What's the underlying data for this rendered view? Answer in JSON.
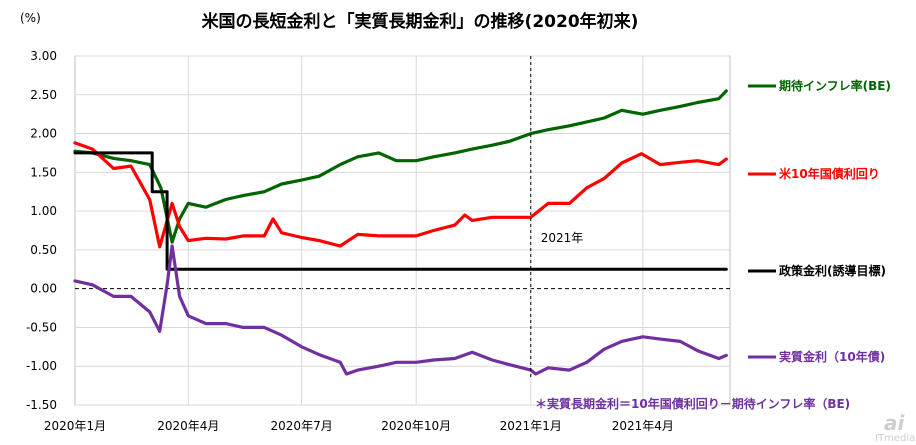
{
  "chart_data": {
    "type": "line",
    "title": "米国の長短金利と「実質長期金利」の推移(2020年初来)",
    "ylabel": "(%)",
    "ylim": [
      -1.5,
      3.0
    ],
    "yticks": [
      "3.00",
      "2.50",
      "2.00",
      "1.50",
      "1.00",
      "0.50",
      "0.00",
      "-0.50",
      "-1.00",
      "-1.50"
    ],
    "ytick_values": [
      3.0,
      2.5,
      2.0,
      1.5,
      1.0,
      0.5,
      0.0,
      -0.5,
      -1.0,
      -1.5
    ],
    "xlim": [
      "2020-01-01",
      "2021-06-10"
    ],
    "xticks": [
      {
        "label": "2020年1月",
        "date": "2020-01-01"
      },
      {
        "label": "2020年4月",
        "date": "2020-04-01"
      },
      {
        "label": "2020年7月",
        "date": "2020-07-01"
      },
      {
        "label": "2020年10月",
        "date": "2020-10-01"
      },
      {
        "label": "2021年1月",
        "date": "2021-01-01"
      },
      {
        "label": "2021年4月",
        "date": "2021-04-01"
      }
    ],
    "grid": true,
    "zero_line": "dashed",
    "annotation": {
      "text": "2021年",
      "date": "2021-01-01",
      "y": 0.6
    },
    "note": "＊実質長期金利＝10年国債利回り－期待インフレ率（BE)",
    "series": [
      {
        "name": "期待インフレ率(BE)",
        "color": "#006400",
        "x": [
          "2020-01-01",
          "2020-01-15",
          "2020-02-01",
          "2020-02-15",
          "2020-03-01",
          "2020-03-10",
          "2020-03-19",
          "2020-03-25",
          "2020-04-01",
          "2020-04-15",
          "2020-05-01",
          "2020-05-15",
          "2020-06-01",
          "2020-06-15",
          "2020-07-01",
          "2020-07-15",
          "2020-08-01",
          "2020-08-15",
          "2020-09-01",
          "2020-09-15",
          "2020-10-01",
          "2020-10-15",
          "2020-11-01",
          "2020-11-15",
          "2020-12-01",
          "2020-12-15",
          "2021-01-01",
          "2021-01-15",
          "2021-02-01",
          "2021-02-15",
          "2021-03-01",
          "2021-03-15",
          "2021-04-01",
          "2021-04-15",
          "2021-05-01",
          "2021-05-15",
          "2021-06-01",
          "2021-06-07"
        ],
        "values": [
          1.77,
          1.75,
          1.68,
          1.65,
          1.6,
          1.3,
          0.6,
          0.9,
          1.1,
          1.05,
          1.15,
          1.2,
          1.25,
          1.35,
          1.4,
          1.45,
          1.6,
          1.7,
          1.75,
          1.65,
          1.65,
          1.7,
          1.75,
          1.8,
          1.85,
          1.9,
          2.0,
          2.05,
          2.1,
          2.15,
          2.2,
          2.3,
          2.25,
          2.3,
          2.35,
          2.4,
          2.45,
          2.55
        ]
      },
      {
        "name": "米10年国債利回り",
        "color": "#ff0000",
        "x": [
          "2020-01-01",
          "2020-01-15",
          "2020-02-01",
          "2020-02-15",
          "2020-03-01",
          "2020-03-09",
          "2020-03-19",
          "2020-03-25",
          "2020-04-01",
          "2020-04-15",
          "2020-05-01",
          "2020-05-15",
          "2020-06-01",
          "2020-06-08",
          "2020-06-15",
          "2020-07-01",
          "2020-07-15",
          "2020-08-01",
          "2020-08-15",
          "2020-09-01",
          "2020-09-15",
          "2020-10-01",
          "2020-10-15",
          "2020-11-01",
          "2020-11-09",
          "2020-11-15",
          "2020-12-01",
          "2020-12-15",
          "2021-01-01",
          "2021-01-15",
          "2021-02-01",
          "2021-02-15",
          "2021-03-01",
          "2021-03-15",
          "2021-03-31",
          "2021-04-15",
          "2021-05-01",
          "2021-05-15",
          "2021-06-01",
          "2021-06-07"
        ],
        "values": [
          1.88,
          1.8,
          1.55,
          1.58,
          1.15,
          0.54,
          1.1,
          0.8,
          0.62,
          0.65,
          0.64,
          0.68,
          0.68,
          0.9,
          0.72,
          0.66,
          0.62,
          0.55,
          0.7,
          0.68,
          0.68,
          0.68,
          0.75,
          0.82,
          0.95,
          0.88,
          0.92,
          0.92,
          0.92,
          1.1,
          1.1,
          1.3,
          1.42,
          1.62,
          1.74,
          1.6,
          1.63,
          1.65,
          1.6,
          1.67
        ]
      },
      {
        "name": "政策金利(誘導目標)",
        "color": "#000000",
        "x": [
          "2020-01-01",
          "2020-03-03",
          "2020-03-03",
          "2020-03-15",
          "2020-03-15",
          "2021-06-07"
        ],
        "values": [
          1.75,
          1.75,
          1.25,
          1.25,
          0.25,
          0.25
        ]
      },
      {
        "name": "実質金利（10年債)",
        "color": "#7030a0",
        "x": [
          "2020-01-01",
          "2020-01-15",
          "2020-02-01",
          "2020-02-15",
          "2020-03-01",
          "2020-03-09",
          "2020-03-15",
          "2020-03-19",
          "2020-03-25",
          "2020-04-01",
          "2020-04-15",
          "2020-05-01",
          "2020-05-15",
          "2020-06-01",
          "2020-06-15",
          "2020-07-01",
          "2020-07-15",
          "2020-08-01",
          "2020-08-06",
          "2020-08-15",
          "2020-09-01",
          "2020-09-15",
          "2020-10-01",
          "2020-10-15",
          "2020-11-01",
          "2020-11-15",
          "2020-12-01",
          "2020-12-15",
          "2021-01-01",
          "2021-01-05",
          "2021-01-15",
          "2021-02-01",
          "2021-02-15",
          "2021-03-01",
          "2021-03-15",
          "2021-04-01",
          "2021-04-15",
          "2021-05-01",
          "2021-05-15",
          "2021-06-01",
          "2021-06-07"
        ],
        "values": [
          0.1,
          0.05,
          -0.1,
          -0.1,
          -0.3,
          -0.55,
          0.05,
          0.55,
          -0.1,
          -0.35,
          -0.45,
          -0.45,
          -0.5,
          -0.5,
          -0.6,
          -0.75,
          -0.85,
          -0.95,
          -1.1,
          -1.05,
          -1.0,
          -0.95,
          -0.95,
          -0.92,
          -0.9,
          -0.82,
          -0.92,
          -0.98,
          -1.05,
          -1.1,
          -1.02,
          -1.05,
          -0.95,
          -0.78,
          -0.68,
          -0.62,
          -0.65,
          -0.68,
          -0.8,
          -0.9,
          -0.86
        ]
      }
    ]
  },
  "watermark": {
    "text_a": "ai",
    "text_b": "ITmedia"
  }
}
